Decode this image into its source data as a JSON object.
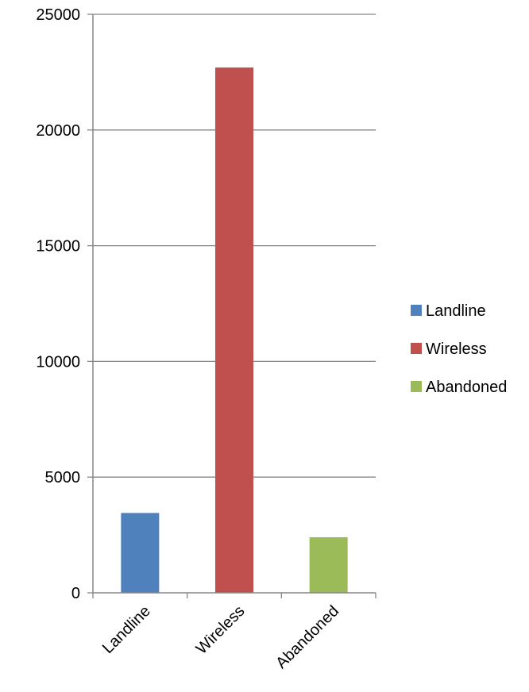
{
  "chart_data": {
    "type": "bar",
    "title": "",
    "xlabel": "",
    "ylabel": "",
    "categories": [
      "Landline",
      "Wireless",
      "Abandoned"
    ],
    "series": [
      {
        "values": [
          3450,
          22700,
          2400
        ]
      }
    ],
    "colors": [
      "#4f81bd",
      "#c0504d",
      "#9bbb59"
    ],
    "ylim": [
      0,
      25000
    ],
    "yticks": [
      0,
      5000,
      10000,
      15000,
      20000,
      25000
    ],
    "grid": true,
    "legend": {
      "position": "right",
      "entries": [
        "Landline",
        "Wireless",
        "Abandoned"
      ]
    }
  }
}
